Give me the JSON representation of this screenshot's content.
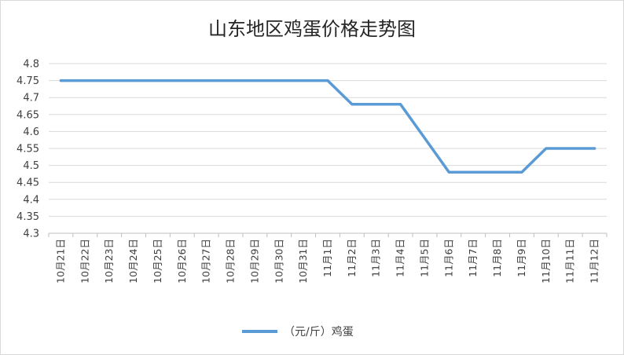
{
  "chart_data": {
    "type": "line",
    "title": "山东地区鸡蛋价格走势图",
    "categories": [
      "10月21日",
      "10月22日",
      "10月23日",
      "10月24日",
      "10月25日",
      "10月26日",
      "10月27日",
      "10月28日",
      "10月29日",
      "10月30日",
      "10月31日",
      "11月1日",
      "11月2日",
      "11月3日",
      "11月4日",
      "11月5日",
      "11月6日",
      "11月7日",
      "11月8日",
      "11月9日",
      "11月10日",
      "11月11日",
      "11月12日"
    ],
    "series": [
      {
        "name": "（元/斤）鸡蛋",
        "values": [
          4.75,
          4.75,
          4.75,
          4.75,
          4.75,
          4.75,
          4.75,
          4.75,
          4.75,
          4.75,
          4.75,
          4.75,
          4.68,
          4.68,
          4.68,
          4.58,
          4.48,
          4.48,
          4.48,
          4.48,
          4.55,
          4.55,
          4.55
        ],
        "color": "#5b9bd5"
      }
    ],
    "y_ticks": [
      "4.3",
      "4.35",
      "4.4",
      "4.45",
      "4.5",
      "4.55",
      "4.6",
      "4.65",
      "4.7",
      "4.75",
      "4.8"
    ],
    "ylim": [
      4.3,
      4.8
    ],
    "grid": true,
    "legend_position": "bottom",
    "colors": {
      "line": "#5b9bd5",
      "grid": "#d9d9d9",
      "axis": "#bfbfbf",
      "text": "#404040"
    }
  }
}
